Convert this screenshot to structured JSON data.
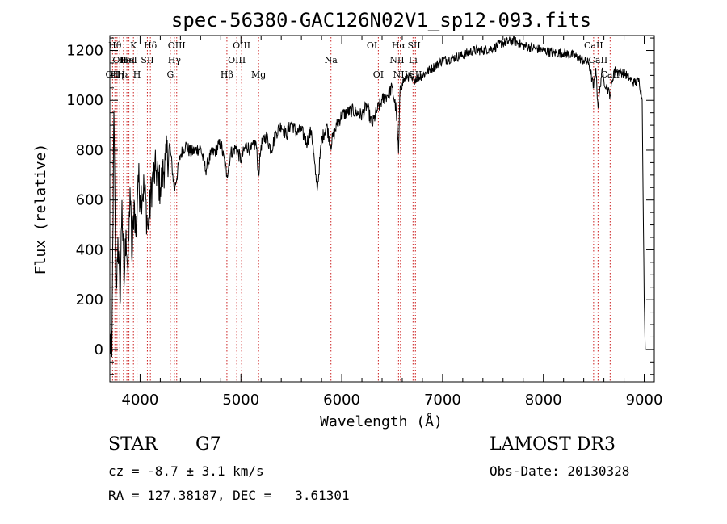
{
  "chart_data": {
    "type": "line",
    "title": "spec-56380-GAC126N02V1_sp12-093.fits",
    "xlabel": "Wavelength (Å)",
    "ylabel": "Flux (relative)",
    "xlim": [
      3700,
      9100
    ],
    "ylim": [
      -130,
      1260
    ],
    "xticks": [
      4000,
      5000,
      6000,
      7000,
      8000,
      9000
    ],
    "yticks": [
      0,
      200,
      400,
      600,
      800,
      1000,
      1200
    ],
    "xtick_labels": [
      "4000",
      "5000",
      "6000",
      "7000",
      "8000",
      "9000"
    ],
    "ytick_labels": [
      "0",
      "200",
      "400",
      "600",
      "800",
      "1000",
      "1200"
    ],
    "grid": false,
    "series": [
      {
        "name": "flux",
        "x": [
          3700,
          3720,
          3740,
          3760,
          3780,
          3800,
          3820,
          3840,
          3860,
          3880,
          3900,
          3920,
          3940,
          3960,
          3980,
          4000,
          4040,
          4080,
          4120,
          4160,
          4200,
          4250,
          4300,
          4340,
          4400,
          4450,
          4500,
          4550,
          4600,
          4650,
          4700,
          4750,
          4800,
          4861,
          4900,
          4950,
          5000,
          5050,
          5100,
          5150,
          5175,
          5200,
          5250,
          5300,
          5350,
          5400,
          5450,
          5500,
          5550,
          5600,
          5650,
          5700,
          5740,
          5760,
          5800,
          5850,
          5890,
          5950,
          6000,
          6050,
          6100,
          6150,
          6200,
          6250,
          6300,
          6350,
          6400,
          6450,
          6500,
          6540,
          6563,
          6580,
          6600,
          6650,
          6700,
          6750,
          6800,
          6900,
          7000,
          7100,
          7200,
          7300,
          7400,
          7500,
          7600,
          7700,
          7800,
          7900,
          8000,
          8100,
          8200,
          8300,
          8400,
          8450,
          8498,
          8520,
          8542,
          8580,
          8600,
          8662,
          8700,
          8800,
          8850,
          8900,
          8950,
          8980,
          9000,
          9010
        ],
        "y": [
          50,
          -30,
          960,
          200,
          450,
          180,
          600,
          250,
          480,
          300,
          650,
          350,
          600,
          450,
          700,
          620,
          650,
          480,
          680,
          720,
          650,
          760,
          800,
          640,
          780,
          820,
          790,
          800,
          810,
          720,
          780,
          800,
          830,
          700,
          790,
          810,
          760,
          820,
          800,
          830,
          700,
          820,
          860,
          800,
          870,
          900,
          860,
          910,
          870,
          880,
          830,
          880,
          700,
          650,
          840,
          900,
          820,
          900,
          940,
          950,
          960,
          950,
          940,
          980,
          900,
          960,
          1000,
          1020,
          1050,
          960,
          790,
          1060,
          1070,
          1100,
          1080,
          1090,
          1100,
          1130,
          1160,
          1170,
          1180,
          1200,
          1200,
          1210,
          1230,
          1240,
          1220,
          1210,
          1200,
          1190,
          1190,
          1180,
          1160,
          1150,
          1050,
          1130,
          970,
          1120,
          1080,
          1020,
          1120,
          1110,
          1090,
          1070,
          1080,
          1000,
          200,
          0
        ]
      }
    ],
    "lines": [
      {
        "wave": 3727,
        "label": "OII",
        "row": 3
      },
      {
        "wave": 3750,
        "label": "Hθ",
        "row": 1
      },
      {
        "wave": 3771,
        "label": "Hη",
        "row": 3
      },
      {
        "wave": 3798,
        "label": "OII",
        "row": 2
      },
      {
        "wave": 3835,
        "label": "Hε",
        "row": 3
      },
      {
        "wave": 3869,
        "label": "HeI",
        "row": 2
      },
      {
        "wave": 3889,
        "label": "HeI",
        "row": 2
      },
      {
        "wave": 3934,
        "label": "K",
        "row": 1
      },
      {
        "wave": 3969,
        "label": "H",
        "row": 3
      },
      {
        "wave": 4072,
        "label": "SII",
        "row": 2
      },
      {
        "wave": 4102,
        "label": "Hδ",
        "row": 1
      },
      {
        "wave": 4300,
        "label": "G",
        "row": 3
      },
      {
        "wave": 4340,
        "label": "Hγ",
        "row": 2
      },
      {
        "wave": 4363,
        "label": "OIII",
        "row": 1
      },
      {
        "wave": 4861,
        "label": "Hβ",
        "row": 3
      },
      {
        "wave": 4959,
        "label": "OIII",
        "row": 2
      },
      {
        "wave": 5007,
        "label": "OIII",
        "row": 1
      },
      {
        "wave": 5175,
        "label": "Mg",
        "row": 3
      },
      {
        "wave": 5893,
        "label": "Na",
        "row": 2
      },
      {
        "wave": 6300,
        "label": "OI",
        "row": 1
      },
      {
        "wave": 6363,
        "label": "OI",
        "row": 3
      },
      {
        "wave": 6548,
        "label": "NII",
        "row": 2
      },
      {
        "wave": 6563,
        "label": "Hα",
        "row": 1
      },
      {
        "wave": 6583,
        "label": "NII",
        "row": 3
      },
      {
        "wave": 6707,
        "label": "Li",
        "row": 2
      },
      {
        "wave": 6717,
        "label": "SII",
        "row": 1
      },
      {
        "wave": 6731,
        "label": "SII",
        "row": 3
      },
      {
        "wave": 8498,
        "label": "CaII",
        "row": 1
      },
      {
        "wave": 8542,
        "label": "CaII",
        "row": 2
      },
      {
        "wave": 8662,
        "label": "CaII",
        "row": 3
      }
    ]
  },
  "footer": {
    "object_class": "STAR",
    "subclass": "G7",
    "survey": "LAMOST DR3",
    "redshift": "cz = -8.7 ± 3.1 km/s",
    "obs_date": "Obs-Date: 20130328",
    "coords": "RA = 127.38187, DEC =   3.61301"
  }
}
